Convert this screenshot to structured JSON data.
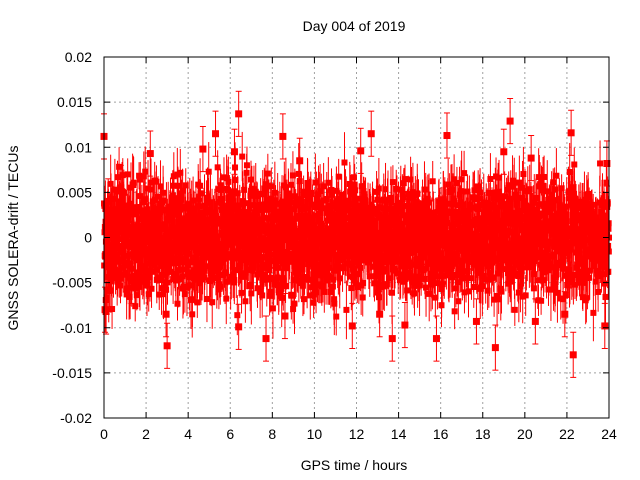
{
  "chart_data": {
    "type": "scatter",
    "title": "Day 004 of 2019",
    "xlabel": "GPS time / hours",
    "ylabel": "GNSS SOLERA-drift / TECUs",
    "xlim": [
      0,
      24
    ],
    "ylim": [
      -0.02,
      0.02
    ],
    "xticks": [
      0,
      2,
      4,
      6,
      8,
      10,
      12,
      14,
      16,
      18,
      20,
      22,
      24
    ],
    "xtick_labels": [
      "0",
      "2",
      "4",
      "6",
      "8",
      "10",
      "12",
      "14",
      "16",
      "18",
      "20",
      "22",
      "24"
    ],
    "yticks": [
      -0.02,
      -0.015,
      -0.01,
      -0.005,
      0,
      0.005,
      0.01,
      0.015,
      0.02
    ],
    "ytick_labels": [
      "-0.02",
      "-0.015",
      "-0.01",
      "-0.005",
      "0",
      "0.005",
      "0.01",
      "0.015",
      "0.02"
    ],
    "grid": true,
    "series": [
      {
        "name": "SOLERA drift",
        "color": "#ff0000",
        "marker": "square",
        "error_bars": true,
        "typical_error": 0.0025,
        "x": [
          0.0,
          0.05,
          0.1,
          0.2,
          0.5,
          0.8,
          1.3,
          2.2,
          2.95,
          3.0,
          4.7,
          5.3,
          6.2,
          6.4,
          6.4,
          7.7,
          8.5,
          8.6,
          9.3,
          11.8,
          12.2,
          12.7,
          13.1,
          13.7,
          14.3,
          15.8,
          16.3,
          17.7,
          18.6,
          19.0,
          19.3,
          20.3,
          20.5,
          21.9,
          22.2,
          22.3,
          23.8,
          23.9
        ],
        "y": [
          0.0112,
          -0.008,
          -0.0082,
          0.004,
          -0.002,
          0.0055,
          -0.0048,
          0.0093,
          -0.0085,
          -0.012,
          0.0098,
          0.0115,
          0.0095,
          0.0137,
          -0.0099,
          -0.0112,
          0.0112,
          -0.0087,
          0.0085,
          -0.0098,
          0.0096,
          0.0115,
          -0.0085,
          -0.0112,
          -0.0097,
          -0.0112,
          0.0113,
          -0.0093,
          -0.0122,
          0.0095,
          0.0129,
          0.0088,
          -0.0093,
          -0.0085,
          0.0116,
          -0.013,
          -0.0098,
          0.0082
        ]
      }
    ]
  }
}
